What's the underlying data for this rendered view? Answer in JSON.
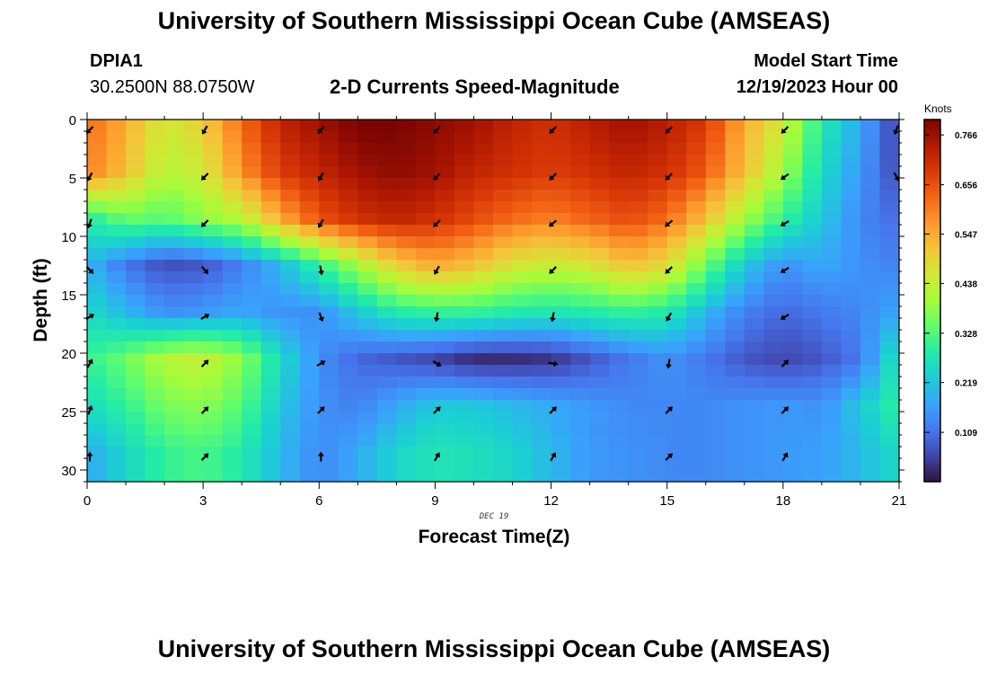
{
  "header": {
    "title": "University of Southern Mississippi Ocean Cube (AMSEAS)",
    "station": "DPIA1",
    "coordinates": "30.2500N  88.0750W",
    "subtitle": "2-D Currents Speed-Magnitude",
    "model_start_label": "Model Start Time",
    "model_start_value": "12/19/2023 Hour 00"
  },
  "footer": {
    "title": "University of Southern Mississippi Ocean Cube (AMSEAS)"
  },
  "chart_data": {
    "type": "heatmap",
    "title": "2-D Currents Speed-Magnitude",
    "xlabel": "Forecast Time(Z)",
    "ylabel": "Depth (ft)",
    "date_label": "DEC 19",
    "xlim": [
      0,
      21
    ],
    "ylim": [
      31,
      0
    ],
    "x_ticks": [
      "0",
      "3",
      "6",
      "9",
      "12",
      "15",
      "18",
      "21"
    ],
    "y_ticks": [
      "0",
      "5",
      "10",
      "15",
      "20",
      "25",
      "30"
    ],
    "colorbar": {
      "label": "Knots",
      "min": 0,
      "max": 0.8,
      "ticks": [
        "0.766",
        "0.656",
        "0.547",
        "0.438",
        "0.328",
        "0.219",
        "0.109"
      ],
      "tick_values": [
        0.766,
        0.656,
        0.547,
        0.438,
        0.328,
        0.219,
        0.109
      ]
    },
    "x_hours": [
      0,
      1,
      2,
      3,
      4,
      5,
      6,
      7,
      8,
      9,
      10,
      11,
      12,
      13,
      14,
      15,
      16,
      17,
      18,
      19,
      20,
      21
    ],
    "depths_ft": [
      0.5,
      4.5,
      8.5,
      12.5,
      16.5,
      20.5,
      24.5,
      28.5
    ],
    "speed_knots": [
      [
        0.62,
        0.55,
        0.45,
        0.5,
        0.62,
        0.72,
        0.76,
        0.8,
        0.8,
        0.78,
        0.76,
        0.72,
        0.7,
        0.73,
        0.76,
        0.73,
        0.68,
        0.55,
        0.45,
        0.28,
        0.18,
        0.05
      ],
      [
        0.6,
        0.52,
        0.42,
        0.45,
        0.58,
        0.68,
        0.72,
        0.76,
        0.78,
        0.76,
        0.72,
        0.7,
        0.68,
        0.7,
        0.72,
        0.7,
        0.64,
        0.52,
        0.4,
        0.25,
        0.16,
        0.06
      ],
      [
        0.28,
        0.35,
        0.33,
        0.38,
        0.42,
        0.55,
        0.65,
        0.7,
        0.72,
        0.7,
        0.66,
        0.62,
        0.6,
        0.63,
        0.66,
        0.62,
        0.52,
        0.4,
        0.3,
        0.22,
        0.14,
        0.1
      ],
      [
        0.2,
        0.12,
        0.07,
        0.08,
        0.13,
        0.2,
        0.3,
        0.4,
        0.5,
        0.55,
        0.52,
        0.46,
        0.44,
        0.46,
        0.52,
        0.48,
        0.35,
        0.22,
        0.15,
        0.18,
        0.15,
        0.13
      ],
      [
        0.25,
        0.2,
        0.15,
        0.16,
        0.18,
        0.15,
        0.15,
        0.22,
        0.28,
        0.3,
        0.3,
        0.28,
        0.27,
        0.28,
        0.3,
        0.28,
        0.2,
        0.13,
        0.1,
        0.12,
        0.14,
        0.18
      ],
      [
        0.3,
        0.35,
        0.42,
        0.44,
        0.38,
        0.25,
        0.15,
        0.1,
        0.08,
        0.06,
        0.03,
        0.03,
        0.04,
        0.08,
        0.12,
        0.15,
        0.12,
        0.08,
        0.06,
        0.08,
        0.12,
        0.28
      ],
      [
        0.25,
        0.3,
        0.36,
        0.38,
        0.33,
        0.22,
        0.15,
        0.13,
        0.18,
        0.22,
        0.22,
        0.2,
        0.18,
        0.16,
        0.14,
        0.14,
        0.14,
        0.15,
        0.16,
        0.15,
        0.22,
        0.3
      ],
      [
        0.18,
        0.24,
        0.3,
        0.32,
        0.28,
        0.2,
        0.14,
        0.18,
        0.24,
        0.27,
        0.26,
        0.24,
        0.2,
        0.16,
        0.15,
        0.14,
        0.14,
        0.15,
        0.16,
        0.17,
        0.2,
        0.25
      ]
    ],
    "arrows": [
      {
        "hour": 0,
        "depth": 0.5,
        "angle": 225
      },
      {
        "hour": 3,
        "depth": 0.5,
        "angle": 210
      },
      {
        "hour": 6,
        "depth": 0.5,
        "angle": 220
      },
      {
        "hour": 9,
        "depth": 0.5,
        "angle": 225
      },
      {
        "hour": 12,
        "depth": 0.5,
        "angle": 225
      },
      {
        "hour": 15,
        "depth": 0.5,
        "angle": 225
      },
      {
        "hour": 18,
        "depth": 0.5,
        "angle": 225
      },
      {
        "hour": 21,
        "depth": 0.5,
        "angle": 200
      },
      {
        "hour": 0,
        "depth": 4.5,
        "angle": 210
      },
      {
        "hour": 3,
        "depth": 4.5,
        "angle": 225
      },
      {
        "hour": 6,
        "depth": 4.5,
        "angle": 210
      },
      {
        "hour": 9,
        "depth": 4.5,
        "angle": 225
      },
      {
        "hour": 12,
        "depth": 4.5,
        "angle": 225
      },
      {
        "hour": 15,
        "depth": 4.5,
        "angle": 225
      },
      {
        "hour": 18,
        "depth": 4.5,
        "angle": 235
      },
      {
        "hour": 21,
        "depth": 4.5,
        "angle": 150
      },
      {
        "hour": 0,
        "depth": 8.5,
        "angle": 200
      },
      {
        "hour": 3,
        "depth": 8.5,
        "angle": 225
      },
      {
        "hour": 6,
        "depth": 8.5,
        "angle": 210
      },
      {
        "hour": 9,
        "depth": 8.5,
        "angle": 225
      },
      {
        "hour": 12,
        "depth": 8.5,
        "angle": 230
      },
      {
        "hour": 15,
        "depth": 8.5,
        "angle": 230
      },
      {
        "hour": 18,
        "depth": 8.5,
        "angle": 240
      },
      {
        "hour": 0,
        "depth": 12.5,
        "angle": 135
      },
      {
        "hour": 3,
        "depth": 12.5,
        "angle": 140
      },
      {
        "hour": 6,
        "depth": 12.5,
        "angle": 170
      },
      {
        "hour": 9,
        "depth": 12.5,
        "angle": 210
      },
      {
        "hour": 12,
        "depth": 12.5,
        "angle": 225
      },
      {
        "hour": 15,
        "depth": 12.5,
        "angle": 225
      },
      {
        "hour": 18,
        "depth": 12.5,
        "angle": 240
      },
      {
        "hour": 0,
        "depth": 16.5,
        "angle": 60
      },
      {
        "hour": 3,
        "depth": 16.5,
        "angle": 60
      },
      {
        "hour": 6,
        "depth": 16.5,
        "angle": 160
      },
      {
        "hour": 9,
        "depth": 16.5,
        "angle": 190
      },
      {
        "hour": 12,
        "depth": 16.5,
        "angle": 190
      },
      {
        "hour": 15,
        "depth": 16.5,
        "angle": 210
      },
      {
        "hour": 18,
        "depth": 16.5,
        "angle": 240
      },
      {
        "hour": 0,
        "depth": 20.5,
        "angle": 30
      },
      {
        "hour": 3,
        "depth": 20.5,
        "angle": 45
      },
      {
        "hour": 6,
        "depth": 20.5,
        "angle": 60
      },
      {
        "hour": 9,
        "depth": 20.5,
        "angle": 120
      },
      {
        "hour": 12,
        "depth": 20.5,
        "angle": 100
      },
      {
        "hour": 15,
        "depth": 20.5,
        "angle": 190
      },
      {
        "hour": 18,
        "depth": 20.5,
        "angle": 45
      },
      {
        "hour": 0,
        "depth": 24.5,
        "angle": 20
      },
      {
        "hour": 3,
        "depth": 24.5,
        "angle": 45
      },
      {
        "hour": 6,
        "depth": 24.5,
        "angle": 45
      },
      {
        "hour": 9,
        "depth": 24.5,
        "angle": 45
      },
      {
        "hour": 12,
        "depth": 24.5,
        "angle": 45
      },
      {
        "hour": 15,
        "depth": 24.5,
        "angle": 45
      },
      {
        "hour": 18,
        "depth": 24.5,
        "angle": 45
      },
      {
        "hour": 0,
        "depth": 28.5,
        "angle": 0
      },
      {
        "hour": 3,
        "depth": 28.5,
        "angle": 45
      },
      {
        "hour": 6,
        "depth": 28.5,
        "angle": 0
      },
      {
        "hour": 9,
        "depth": 28.5,
        "angle": 30
      },
      {
        "hour": 12,
        "depth": 28.5,
        "angle": 30
      },
      {
        "hour": 15,
        "depth": 28.5,
        "angle": 45
      },
      {
        "hour": 18,
        "depth": 28.5,
        "angle": 30
      }
    ]
  }
}
